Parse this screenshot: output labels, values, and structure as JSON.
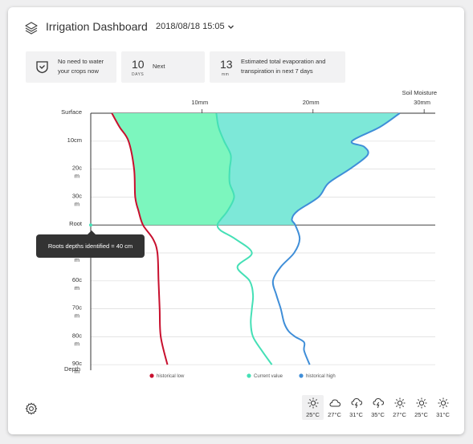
{
  "header": {
    "title": "Irrigation Dashboard",
    "date": "2018/08/18 15:05",
    "layers_icon": "layers-icon",
    "dropdown_icon": "chevron-down-icon"
  },
  "stats": [
    {
      "icon": "shield-check-icon",
      "text_line1": "No need to water",
      "text_line2": "your crops now"
    },
    {
      "value": "10",
      "unit": "DAYS",
      "text": "Next"
    },
    {
      "value": "13",
      "unit": "mm",
      "text_line1": "Estimated total evaporation and",
      "text_line2": "transpiration in next 7 days"
    }
  ],
  "chart_data": {
    "type": "area",
    "x_title": "Soil Moisture",
    "x_ticks": [
      "10mm",
      "20mm",
      "30mm"
    ],
    "y_labels": [
      {
        "l1": "Surface",
        "l2": ""
      },
      {
        "l1": "10cm",
        "l2": ""
      },
      {
        "l1": "20c",
        "l2": "m"
      },
      {
        "l1": "30c",
        "l2": "m"
      },
      {
        "l1": "Root",
        "l2": ""
      },
      {
        "l1": "",
        "l2": "m"
      },
      {
        "l1": "60c",
        "l2": "m"
      },
      {
        "l1": "70c",
        "l2": "m"
      },
      {
        "l1": "80c",
        "l2": "m"
      },
      {
        "l1": "90c",
        "l2": "m"
      }
    ],
    "depth_label": "Depth",
    "root_depth_cm": 40,
    "series": [
      {
        "name": "historical low",
        "color": "#c8102e",
        "depths": [
          0,
          5,
          10,
          20,
          30,
          35,
          40,
          45,
          50,
          60,
          70,
          80,
          90
        ],
        "values": [
          1.9,
          2.6,
          3.4,
          3.9,
          4.0,
          4.3,
          4.7,
          5.6,
          6.0,
          6.1,
          6.2,
          6.3,
          6.9
        ]
      },
      {
        "name": "Current value",
        "color": "#45e0b6",
        "depths": [
          0,
          5,
          10,
          15,
          20,
          25,
          30,
          35,
          38,
          40,
          42,
          45,
          50,
          55,
          60,
          65,
          70,
          75,
          80,
          85,
          90
        ],
        "values": [
          11.3,
          11.5,
          12.0,
          12.6,
          12.5,
          12.5,
          12.9,
          12.3,
          11.7,
          11.4,
          11.7,
          13.0,
          14.5,
          13.2,
          14.3,
          14.6,
          14.5,
          14.4,
          14.6,
          15.4,
          16.3
        ]
      },
      {
        "name": "historical high",
        "color": "#3f8ed8",
        "depths": [
          0,
          5,
          10,
          12,
          15,
          20,
          25,
          30,
          35,
          38,
          40,
          45,
          50,
          55,
          60,
          65,
          70,
          75,
          78,
          80,
          82,
          85,
          90
        ],
        "values": [
          27.8,
          26.0,
          23.5,
          24.6,
          24.9,
          23.3,
          21.4,
          20.5,
          18.6,
          18.1,
          18.4,
          18.8,
          18.3,
          17.1,
          16.4,
          16.7,
          17.1,
          17.4,
          17.8,
          18.4,
          19.2,
          19.2,
          19.7
        ]
      }
    ],
    "fill_colors": {
      "left": "#7cf6be",
      "right": "#7de8d8"
    },
    "tooltip": "Roots depths identified = 40 cm"
  },
  "footer": {
    "settings_icon": "gear-icon",
    "forecast": [
      {
        "icon": "sun-icon",
        "temp": "25°C",
        "selected": true
      },
      {
        "icon": "cloud-icon",
        "temp": "27°C"
      },
      {
        "icon": "thunder-icon",
        "temp": "31°C"
      },
      {
        "icon": "thunder-icon",
        "temp": "35°C"
      },
      {
        "icon": "sun-icon",
        "temp": "27°C"
      },
      {
        "icon": "sun-icon",
        "temp": "25°C"
      },
      {
        "icon": "sun-icon",
        "temp": "31°C"
      }
    ]
  }
}
